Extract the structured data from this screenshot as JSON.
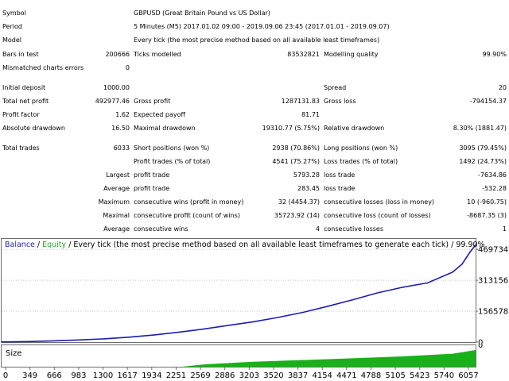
{
  "report": {
    "symbol": {
      "label": "Symbol",
      "value": "GBPUSD (Great Britain Pound vs US Dollar)"
    },
    "period": {
      "label": "Period",
      "value": "5 Minutes (M5) 2017.01.02 09:00 - 2019.09.06 23:45 (2017.01.01 - 2019.09.07)"
    },
    "model": {
      "label": "Model",
      "value": "Every tick (the most precise method based on all available least timeframes)"
    },
    "bars_in_test": {
      "label": "Bars in test",
      "value": "200666"
    },
    "ticks_modelled": {
      "label": "Ticks modelled",
      "value": "83532821"
    },
    "modelling_quality": {
      "label": "Modelling quality",
      "value": "99.90%"
    },
    "mismatched_errors": {
      "label": "Mismatched charts errors",
      "value": "0"
    },
    "initial_deposit": {
      "label": "Initial deposit",
      "value": "1000.00"
    },
    "spread": {
      "label": "Spread",
      "value": "20"
    },
    "total_net_profit": {
      "label": "Total net profit",
      "value": "492977.46"
    },
    "gross_profit": {
      "label": "Gross profit",
      "value": "1287131.83"
    },
    "gross_loss": {
      "label": "Gross loss",
      "value": "-794154.37"
    },
    "profit_factor": {
      "label": "Profit factor",
      "value": "1.62"
    },
    "expected_payoff": {
      "label": "Expected payoff",
      "value": "81.71"
    },
    "absolute_drawdown": {
      "label": "Absolute drawdown",
      "value": "16.50"
    },
    "maximal_drawdown": {
      "label": "Maximal drawdown",
      "value": "19310.77 (5.75%)"
    },
    "relative_drawdown": {
      "label": "Relative drawdown",
      "value": "8.30% (1881.47)"
    },
    "total_trades": {
      "label": "Total trades",
      "value": "6033"
    },
    "short_positions": {
      "label": "Short positions (won %)",
      "value": "2938 (70.86%)"
    },
    "long_positions": {
      "label": "Long positions (won %)",
      "value": "3095 (79.45%)"
    },
    "profit_trades": {
      "label": "Profit trades (% of total)",
      "value": "4541 (75.27%)"
    },
    "loss_trades": {
      "label": "Loss trades (% of total)",
      "value": "1492 (24.73%)"
    },
    "largest": {
      "label": "Largest",
      "profit_label": "profit trade",
      "profit_value": "5793.28",
      "loss_label": "loss trade",
      "loss_value": "-7634.86"
    },
    "average": {
      "label": "Average",
      "profit_label": "profit trade",
      "profit_value": "283.45",
      "loss_label": "loss trade",
      "loss_value": "-532.28"
    },
    "maximum": {
      "label": "Maximum",
      "wins_label": "consecutive wins (profit in money)",
      "wins_value": "32 (4454.37)",
      "losses_label": "consecutive losses (loss in money)",
      "losses_value": "10 (-960.75)"
    },
    "maximal": {
      "label": "Maximal",
      "profit_label": "consecutive profit (count of wins)",
      "profit_value": "35723.92 (14)",
      "loss_label": "consecutive loss (count of losses)",
      "loss_value": "-8687.35 (3)"
    },
    "average_consecutive": {
      "label": "Average",
      "wins_label": "consecutive wins",
      "wins_value": "4",
      "losses_label": "consecutive losses",
      "losses_value": "1"
    }
  },
  "chart_legend": {
    "balance": "Balance",
    "slash": " / ",
    "equity": "Equity",
    "rest": " / Every tick (the most precise method based on all available least timeframes to generate each tick) / 99.90%"
  },
  "size_panel": {
    "label": "Size"
  },
  "colors": {
    "balance": "#1c1cb4",
    "equity": "#2ca82c",
    "size": "#19b119",
    "grid": "#6e6e6e"
  },
  "chart_data": {
    "type": "line",
    "title": "Balance / Equity / Every tick (the most precise method based on all available least timeframes to generate each tick) / 99.90%",
    "xlabel": "",
    "ylabel": "",
    "x_ticks": [
      0,
      349,
      666,
      983,
      1300,
      1617,
      1934,
      2251,
      2569,
      2886,
      3203,
      3520,
      3837,
      4154,
      4471,
      4788,
      5105,
      5423,
      5740,
      6057
    ],
    "y_ticks": [
      469734,
      313156,
      156578,
      0
    ],
    "xlim": [
      0,
      6033
    ],
    "ylim": [
      0,
      523000
    ],
    "series": [
      {
        "name": "Balance",
        "x": [
          0,
          349,
          666,
          983,
          1300,
          1617,
          1934,
          2251,
          2569,
          2886,
          3203,
          3520,
          3837,
          4154,
          4471,
          4788,
          5105,
          5423,
          5740,
          5860,
          5960,
          6033
        ],
        "values": [
          1000,
          3000,
          6500,
          11000,
          16500,
          25000,
          36000,
          50000,
          66000,
          85000,
          103000,
          125000,
          151000,
          182000,
          215000,
          250000,
          278000,
          300000,
          355000,
          395000,
          455000,
          492977
        ]
      }
    ],
    "size_panel": {
      "label": "Size",
      "type": "area",
      "x": [
        0,
        2300,
        2600,
        3203,
        4154,
        5105,
        5740,
        6033
      ],
      "values": [
        0,
        0,
        0.15,
        0.3,
        0.45,
        0.62,
        0.78,
        1.0
      ]
    }
  }
}
